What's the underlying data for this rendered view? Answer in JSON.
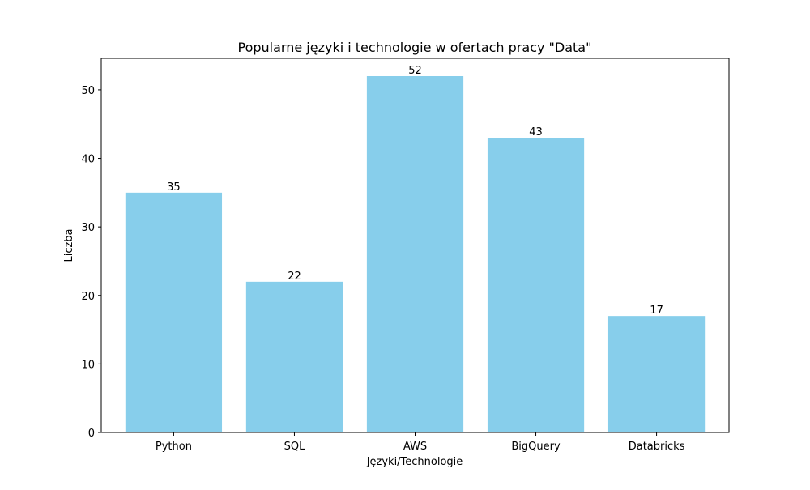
{
  "chart_data": {
    "type": "bar",
    "title": "Popularne języki i technologie w ofertach pracy \"Data\"",
    "xlabel": "Języki/Technologie",
    "ylabel": "Liczba",
    "categories": [
      "Python",
      "SQL",
      "AWS",
      "BigQuery",
      "Databricks"
    ],
    "values": [
      35,
      22,
      52,
      43,
      17
    ],
    "data_labels": [
      "35",
      "22",
      "52",
      "43",
      "17"
    ],
    "ylim": [
      0,
      54.6
    ],
    "yticks": [
      0,
      10,
      20,
      30,
      40,
      50
    ],
    "ytick_labels": [
      "0",
      "10",
      "20",
      "30",
      "40",
      "50"
    ],
    "grid": false,
    "bar_color": "#87ceeb"
  }
}
